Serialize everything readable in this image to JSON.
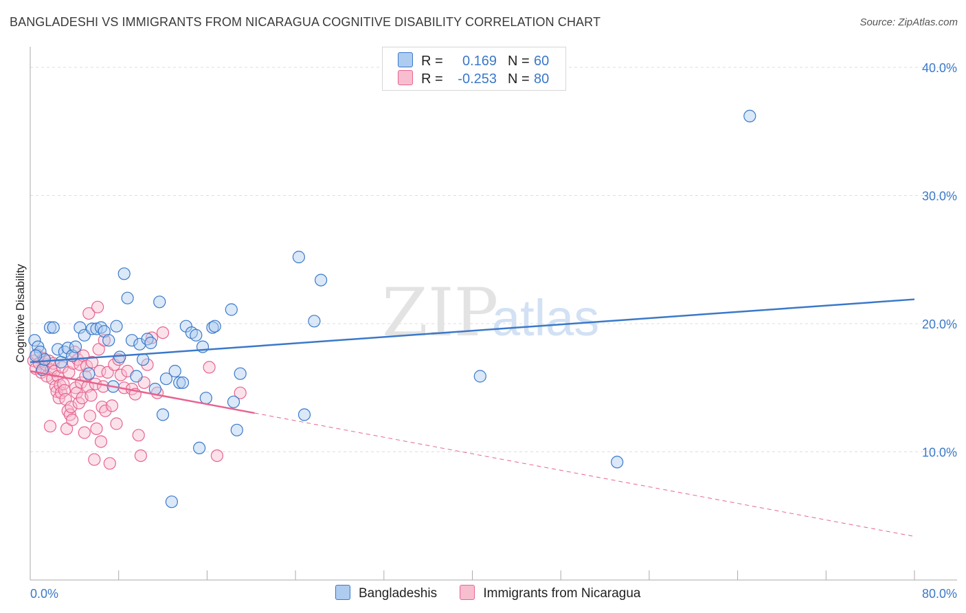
{
  "title": "BANGLADESHI VS IMMIGRANTS FROM NICARAGUA COGNITIVE DISABILITY CORRELATION CHART",
  "source": "Source: ZipAtlas.com",
  "watermark": {
    "zip": "ZIP",
    "atlas": "atlas"
  },
  "colors": {
    "blue": "#3a78c9",
    "blue_fill": "#aecbf0",
    "pink": "#e8638f",
    "pink_fill": "#f7bed0",
    "grid": "#dddddd",
    "tick_label": "#3a78c9"
  },
  "legend": {
    "rows": [
      {
        "r_label": "R =",
        "r_value": "0.169",
        "n_label": "N =",
        "n_value": "60"
      },
      {
        "r_label": "R =",
        "r_value": "-0.253",
        "n_label": "N =",
        "n_value": "80"
      }
    ]
  },
  "bottom_legend": [
    "Bangladeshis",
    "Immigrants from Nicaragua"
  ],
  "chart_data": {
    "type": "scatter",
    "title": "BANGLADESHI VS IMMIGRANTS FROM NICARAGUA COGNITIVE DISABILITY CORRELATION CHART",
    "xlabel": "",
    "ylabel": "Cognitive Disability",
    "xlim": [
      0,
      80
    ],
    "ylim": [
      0,
      42
    ],
    "x_tick_labels": [
      "0.0%",
      "80.0%"
    ],
    "y_ticks": [
      10,
      20,
      30,
      40
    ],
    "y_tick_labels": [
      "10.0%",
      "20.0%",
      "30.0%",
      "40.0%"
    ],
    "grid": true,
    "legend_position": "top-center",
    "series": [
      {
        "name": "Bangladeshis",
        "color": "#3a78c9",
        "trend": {
          "x": [
            0,
            80
          ],
          "y": [
            17.0,
            21.9
          ],
          "dashed_from_x": null
        },
        "points": [
          [
            0.4,
            18.7
          ],
          [
            0.7,
            18.2
          ],
          [
            0.9,
            17.8
          ],
          [
            1.1,
            16.4
          ],
          [
            1.3,
            17.2
          ],
          [
            1.8,
            19.7
          ],
          [
            2.1,
            19.7
          ],
          [
            2.5,
            18.0
          ],
          [
            2.8,
            17.0
          ],
          [
            3.1,
            17.8
          ],
          [
            3.4,
            18.1
          ],
          [
            3.8,
            17.5
          ],
          [
            4.1,
            18.2
          ],
          [
            4.5,
            19.7
          ],
          [
            4.9,
            19.1
          ],
          [
            5.3,
            16.1
          ],
          [
            5.6,
            19.6
          ],
          [
            6.0,
            19.6
          ],
          [
            6.4,
            19.7
          ],
          [
            6.7,
            19.4
          ],
          [
            7.1,
            18.7
          ],
          [
            7.5,
            15.1
          ],
          [
            7.8,
            19.8
          ],
          [
            8.1,
            17.4
          ],
          [
            8.5,
            23.9
          ],
          [
            8.8,
            22.0
          ],
          [
            9.2,
            18.7
          ],
          [
            9.6,
            15.9
          ],
          [
            9.9,
            18.4
          ],
          [
            10.2,
            17.2
          ],
          [
            10.6,
            18.8
          ],
          [
            10.9,
            18.5
          ],
          [
            11.3,
            14.9
          ],
          [
            11.7,
            21.7
          ],
          [
            12.0,
            12.9
          ],
          [
            12.3,
            15.7
          ],
          [
            12.8,
            6.1
          ],
          [
            13.1,
            16.3
          ],
          [
            13.5,
            15.4
          ],
          [
            13.8,
            15.4
          ],
          [
            14.1,
            19.8
          ],
          [
            14.6,
            19.3
          ],
          [
            15.0,
            19.1
          ],
          [
            15.3,
            10.3
          ],
          [
            15.6,
            18.2
          ],
          [
            15.9,
            14.2
          ],
          [
            16.5,
            19.7
          ],
          [
            16.7,
            19.8
          ],
          [
            18.2,
            21.1
          ],
          [
            18.4,
            13.9
          ],
          [
            18.7,
            11.7
          ],
          [
            19.0,
            16.1
          ],
          [
            24.3,
            25.2
          ],
          [
            24.8,
            12.9
          ],
          [
            25.7,
            20.2
          ],
          [
            26.3,
            23.4
          ],
          [
            40.7,
            15.9
          ],
          [
            53.1,
            9.2
          ],
          [
            65.1,
            36.2
          ],
          [
            0.5,
            17.5
          ]
        ]
      },
      {
        "name": "Immigrants from Nicaragua",
        "color": "#e8638f",
        "trend": {
          "x": [
            0,
            80
          ],
          "y": [
            16.3,
            3.4
          ],
          "dashed_from_x": 20.3
        },
        "points": [
          [
            0.3,
            17.1
          ],
          [
            0.5,
            16.5
          ],
          [
            0.6,
            17.6
          ],
          [
            0.8,
            16.9
          ],
          [
            1.0,
            16.2
          ],
          [
            1.2,
            17.3
          ],
          [
            1.4,
            16.8
          ],
          [
            1.5,
            15.9
          ],
          [
            1.7,
            17.1
          ],
          [
            1.8,
            12.0
          ],
          [
            1.9,
            16.4
          ],
          [
            2.0,
            15.7
          ],
          [
            2.1,
            16.9
          ],
          [
            2.2,
            16.3
          ],
          [
            2.3,
            15.1
          ],
          [
            2.4,
            14.7
          ],
          [
            2.5,
            15.9
          ],
          [
            2.6,
            14.2
          ],
          [
            2.7,
            15.2
          ],
          [
            2.8,
            14.6
          ],
          [
            2.9,
            16.6
          ],
          [
            3.0,
            15.3
          ],
          [
            3.1,
            14.8
          ],
          [
            3.2,
            14.1
          ],
          [
            3.3,
            11.8
          ],
          [
            3.4,
            13.2
          ],
          [
            3.5,
            16.2
          ],
          [
            3.6,
            12.9
          ],
          [
            3.7,
            13.5
          ],
          [
            3.8,
            12.5
          ],
          [
            3.9,
            16.9
          ],
          [
            4.0,
            17.8
          ],
          [
            4.1,
            15.0
          ],
          [
            4.2,
            14.6
          ],
          [
            4.3,
            17.2
          ],
          [
            4.4,
            13.8
          ],
          [
            4.5,
            16.8
          ],
          [
            4.6,
            15.4
          ],
          [
            4.7,
            14.2
          ],
          [
            4.8,
            17.5
          ],
          [
            4.9,
            11.5
          ],
          [
            5.0,
            15.9
          ],
          [
            5.1,
            16.7
          ],
          [
            5.2,
            15.1
          ],
          [
            5.3,
            20.8
          ],
          [
            5.4,
            12.8
          ],
          [
            5.5,
            14.4
          ],
          [
            5.6,
            17.0
          ],
          [
            5.8,
            9.4
          ],
          [
            5.9,
            15.3
          ],
          [
            6.0,
            11.8
          ],
          [
            6.1,
            21.3
          ],
          [
            6.2,
            18.0
          ],
          [
            6.3,
            16.3
          ],
          [
            6.4,
            10.8
          ],
          [
            6.5,
            13.5
          ],
          [
            6.6,
            15.1
          ],
          [
            6.7,
            18.7
          ],
          [
            6.8,
            13.2
          ],
          [
            7.0,
            16.2
          ],
          [
            7.2,
            9.1
          ],
          [
            7.4,
            13.6
          ],
          [
            7.6,
            16.8
          ],
          [
            7.8,
            12.2
          ],
          [
            8.0,
            17.2
          ],
          [
            8.2,
            16.0
          ],
          [
            8.5,
            15.0
          ],
          [
            8.8,
            16.3
          ],
          [
            9.2,
            14.9
          ],
          [
            9.5,
            14.5
          ],
          [
            9.8,
            11.3
          ],
          [
            10.0,
            9.7
          ],
          [
            10.3,
            15.4
          ],
          [
            10.6,
            16.8
          ],
          [
            11.0,
            18.9
          ],
          [
            11.5,
            14.6
          ],
          [
            12.0,
            19.3
          ],
          [
            16.2,
            16.6
          ],
          [
            16.9,
            9.7
          ],
          [
            19.0,
            14.6
          ]
        ]
      }
    ]
  }
}
